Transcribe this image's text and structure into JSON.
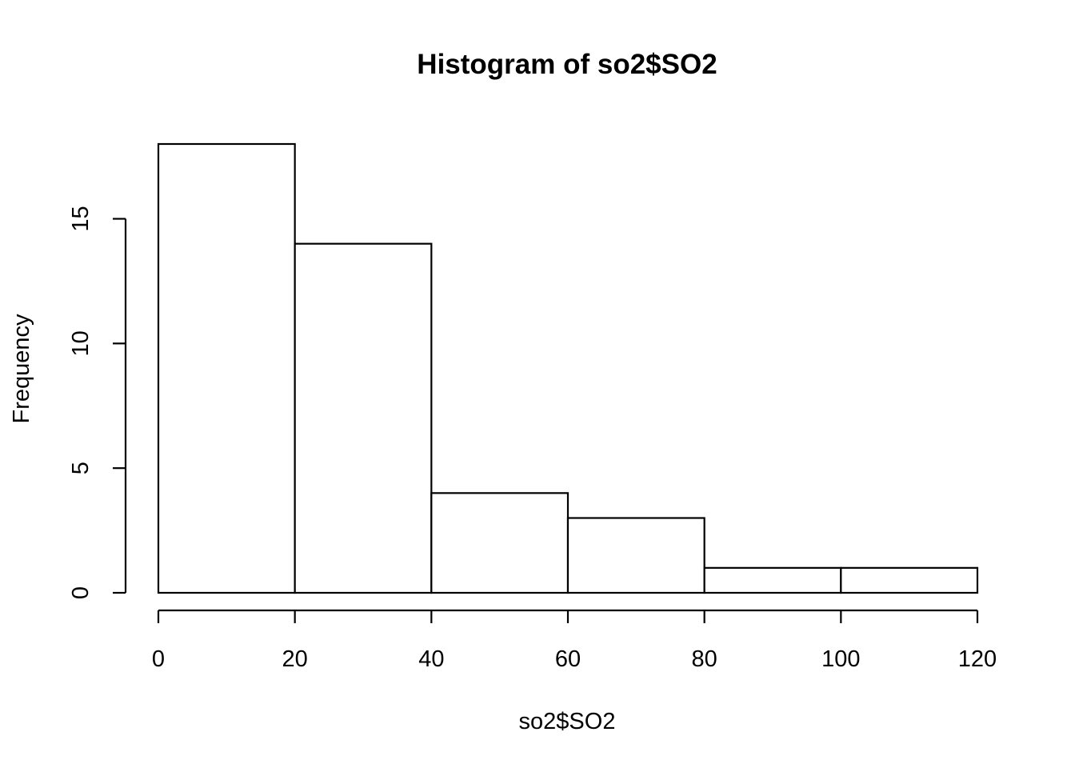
{
  "chart_data": {
    "type": "bar",
    "title": "Histogram of so2$SO2",
    "xlabel": "so2$SO2",
    "ylabel": "Frequency",
    "bins": [
      {
        "start": 0,
        "end": 20,
        "value": 18
      },
      {
        "start": 20,
        "end": 40,
        "value": 14
      },
      {
        "start": 40,
        "end": 60,
        "value": 4
      },
      {
        "start": 60,
        "end": 80,
        "value": 3
      },
      {
        "start": 80,
        "end": 100,
        "value": 1
      },
      {
        "start": 100,
        "end": 120,
        "value": 1
      }
    ],
    "xlim": [
      0,
      120
    ],
    "ylim": [
      0,
      18
    ],
    "x_ticks": [
      0,
      20,
      40,
      60,
      80,
      100,
      120
    ],
    "y_ticks": [
      0,
      5,
      10,
      15
    ],
    "x_tick_labels": [
      "0",
      "20",
      "40",
      "60",
      "80",
      "100",
      "120"
    ],
    "y_tick_labels": [
      "0",
      "5",
      "10",
      "15"
    ],
    "grid": false,
    "legend": "none",
    "colors": {
      "bar_fill": "#ffffff",
      "bar_stroke": "#000000",
      "background": "#ffffff"
    }
  }
}
